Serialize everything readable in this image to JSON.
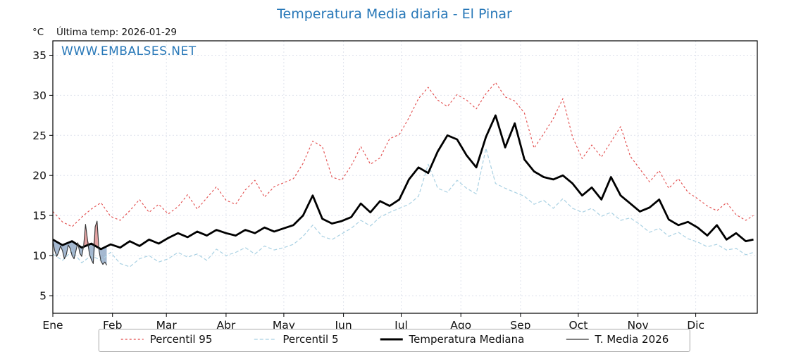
{
  "title": "Temperatura Media diaria - El Pinar",
  "unit": "°C",
  "last_temp": "Última temp: 2026-01-29",
  "watermark": "WWW.EMBALSES.NET",
  "colors": {
    "title": "#2878b8",
    "watermark": "#2878b8",
    "grid": "#dfe3ed",
    "frame": "#000000",
    "fill_above_median": "rgba(205,85,85,0.55)",
    "fill_below_median": "rgba(90,125,170,0.55)"
  },
  "chart_data": {
    "type": "line",
    "title": "Temperatura Media diaria - El Pinar",
    "xlabel": "",
    "ylabel": "°C",
    "x_unit": "day_of_year",
    "xlim_days": [
      0,
      366
    ],
    "ylim": [
      2.8,
      36.8
    ],
    "yticks": [
      5,
      10,
      15,
      20,
      25,
      30,
      35
    ],
    "grid": true,
    "legend_position": "bottom",
    "months": [
      "Ene",
      "Feb",
      "Mar",
      "Abr",
      "May",
      "Jun",
      "Jul",
      "Ago",
      "Sep",
      "Oct",
      "Nov",
      "Dic"
    ],
    "month_start_days": [
      0,
      31,
      59,
      90,
      120,
      151,
      181,
      212,
      243,
      273,
      304,
      334
    ],
    "shared_x_days": [
      0,
      5,
      10,
      15,
      20,
      25,
      30,
      35,
      40,
      45,
      50,
      55,
      60,
      65,
      70,
      75,
      80,
      85,
      90,
      95,
      100,
      105,
      110,
      115,
      120,
      125,
      130,
      135,
      140,
      145,
      150,
      155,
      160,
      165,
      170,
      175,
      180,
      185,
      190,
      195,
      200,
      205,
      210,
      215,
      220,
      225,
      230,
      235,
      240,
      245,
      250,
      255,
      260,
      265,
      270,
      275,
      280,
      285,
      290,
      295,
      300,
      305,
      310,
      315,
      320,
      325,
      330,
      335,
      340,
      345,
      350,
      355,
      360,
      364
    ],
    "series": [
      {
        "name": "Percentil 95",
        "color": "#e24a4a",
        "width": 1.1,
        "dash": "3 3",
        "x": [
          0,
          5,
          10,
          15,
          20,
          25,
          30,
          35,
          40,
          45,
          50,
          55,
          60,
          65,
          70,
          75,
          80,
          85,
          90,
          95,
          100,
          105,
          110,
          115,
          120,
          125,
          130,
          135,
          140,
          145,
          150,
          155,
          160,
          165,
          170,
          175,
          180,
          185,
          190,
          195,
          200,
          205,
          210,
          215,
          220,
          225,
          230,
          235,
          240,
          245,
          250,
          255,
          260,
          265,
          270,
          275,
          280,
          285,
          290,
          295,
          300,
          305,
          310,
          315,
          320,
          325,
          330,
          335,
          340,
          345,
          350,
          355,
          360,
          364
        ],
        "y": [
          15.5,
          14.2,
          13.6,
          14.8,
          15.8,
          16.6,
          14.9,
          14.4,
          15.6,
          17.0,
          15.4,
          16.4,
          15.2,
          16.1,
          17.6,
          15.8,
          17.2,
          18.6,
          16.9,
          16.4,
          18.2,
          19.4,
          17.3,
          18.6,
          19.1,
          19.6,
          21.5,
          24.3,
          23.6,
          19.8,
          19.4,
          21.2,
          23.6,
          21.4,
          22.2,
          24.6,
          25.1,
          27.2,
          29.6,
          31.0,
          29.4,
          28.6,
          30.1,
          29.4,
          28.3,
          30.2,
          31.6,
          29.8,
          29.3,
          27.8,
          23.4,
          25.2,
          27.1,
          29.6,
          24.8,
          22.1,
          23.8,
          22.3,
          24.2,
          26.1,
          22.4,
          20.8,
          19.2,
          20.6,
          18.4,
          19.6,
          17.9,
          17.1,
          16.2,
          15.6,
          16.6,
          15.1,
          14.4,
          15.0
        ]
      },
      {
        "name": "Percentil 5",
        "color": "#a9d1e3",
        "width": 1.2,
        "dash": "5 3",
        "x": [
          0,
          5,
          10,
          15,
          20,
          25,
          30,
          35,
          40,
          45,
          50,
          55,
          60,
          65,
          70,
          75,
          80,
          85,
          90,
          95,
          100,
          105,
          110,
          115,
          120,
          125,
          130,
          135,
          140,
          145,
          150,
          155,
          160,
          165,
          170,
          175,
          180,
          185,
          190,
          195,
          200,
          205,
          210,
          215,
          220,
          225,
          230,
          235,
          240,
          245,
          250,
          255,
          260,
          265,
          270,
          275,
          280,
          285,
          290,
          295,
          300,
          305,
          310,
          315,
          320,
          325,
          330,
          335,
          340,
          345,
          350,
          355,
          360,
          364
        ],
        "y": [
          10.2,
          9.4,
          10.6,
          9.1,
          10.0,
          9.4,
          10.4,
          9.0,
          8.6,
          9.6,
          10.0,
          9.2,
          9.6,
          10.4,
          9.8,
          10.2,
          9.4,
          10.8,
          10.0,
          10.4,
          11.0,
          10.2,
          11.2,
          10.7,
          11.0,
          11.4,
          12.4,
          13.8,
          12.4,
          12.0,
          12.7,
          13.4,
          14.4,
          13.7,
          14.8,
          15.4,
          15.9,
          16.4,
          17.4,
          21.4,
          18.4,
          17.9,
          19.4,
          18.4,
          17.7,
          23.4,
          19.0,
          18.4,
          17.9,
          17.4,
          16.4,
          16.9,
          15.9,
          17.1,
          15.9,
          15.4,
          15.9,
          14.9,
          15.4,
          14.4,
          14.7,
          13.9,
          12.9,
          13.4,
          12.4,
          12.9,
          12.1,
          11.7,
          11.1,
          11.4,
          10.7,
          10.9,
          10.1,
          10.4
        ]
      },
      {
        "name": "Temperatura Mediana",
        "color": "#000000",
        "width": 2.8,
        "dash": "",
        "x": [
          0,
          5,
          10,
          15,
          20,
          25,
          30,
          35,
          40,
          45,
          50,
          55,
          60,
          65,
          70,
          75,
          80,
          85,
          90,
          95,
          100,
          105,
          110,
          115,
          120,
          125,
          130,
          135,
          140,
          145,
          150,
          155,
          160,
          165,
          170,
          175,
          180,
          185,
          190,
          195,
          200,
          205,
          210,
          215,
          220,
          225,
          230,
          235,
          240,
          245,
          250,
          255,
          260,
          265,
          270,
          275,
          280,
          285,
          290,
          295,
          300,
          305,
          310,
          315,
          320,
          325,
          330,
          335,
          340,
          345,
          350,
          355,
          360,
          364
        ],
        "y": [
          12.0,
          11.3,
          11.8,
          11.0,
          11.5,
          10.8,
          11.4,
          11.0,
          11.8,
          11.2,
          12.0,
          11.5,
          12.2,
          12.8,
          12.3,
          13.0,
          12.5,
          13.2,
          12.8,
          12.5,
          13.2,
          12.8,
          13.5,
          13.0,
          13.4,
          13.8,
          15.0,
          17.5,
          14.6,
          14.0,
          14.3,
          14.8,
          16.5,
          15.4,
          16.8,
          16.2,
          17.0,
          19.5,
          21.0,
          20.3,
          23.0,
          25.0,
          24.5,
          22.5,
          21.0,
          24.8,
          27.5,
          23.5,
          26.5,
          22.0,
          20.5,
          19.8,
          19.5,
          20.0,
          19.0,
          17.5,
          18.5,
          17.0,
          19.8,
          17.5,
          16.5,
          15.5,
          16.0,
          17.0,
          14.5,
          13.8,
          14.2,
          13.5,
          12.5,
          13.8,
          12.0,
          12.8,
          11.8,
          12.0
        ]
      },
      {
        "name": "T. Media 2026",
        "color": "#333333",
        "width": 1.1,
        "dash": "",
        "x": [
          0,
          1,
          2,
          3,
          4,
          5,
          6,
          7,
          8,
          9,
          10,
          11,
          12,
          13,
          14,
          15,
          16,
          17,
          18,
          19,
          20,
          21,
          22,
          23,
          24,
          25,
          26,
          27,
          28
        ],
        "y": [
          11.8,
          10.6,
          9.9,
          10.4,
          11.2,
          10.6,
          9.6,
          10.1,
          11.3,
          10.9,
          10.0,
          9.6,
          10.6,
          11.6,
          10.3,
          9.9,
          11.2,
          13.9,
          12.0,
          10.2,
          9.5,
          9.0,
          13.6,
          14.3,
          10.6,
          9.3,
          8.9,
          9.2,
          8.8
        ]
      }
    ]
  }
}
